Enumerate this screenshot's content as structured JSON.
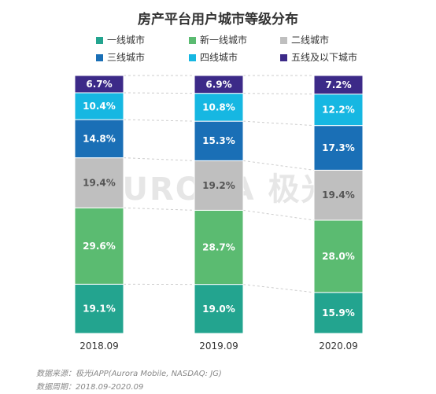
{
  "chart_data": {
    "type": "bar",
    "stacked": true,
    "title": "房产平台用户城市等级分布",
    "categories": [
      "2018.09",
      "2019.09",
      "2020.09"
    ],
    "series": [
      {
        "name": "一线城市",
        "color": "#23a48f",
        "values": [
          19.1,
          19.0,
          15.9
        ],
        "labels": [
          "19.1%",
          "19.0%",
          "15.9%"
        ]
      },
      {
        "name": "新一线城市",
        "color": "#5bbb71",
        "values": [
          29.6,
          28.7,
          28.0
        ],
        "labels": [
          "29.6%",
          "28.7%",
          "28.0%"
        ]
      },
      {
        "name": "二线城市",
        "color": "#bfbfbf",
        "values": [
          19.4,
          19.2,
          19.4
        ],
        "labels": [
          "19.4%",
          "19.2%",
          "19.4%"
        ]
      },
      {
        "name": "三线城市",
        "color": "#1a6fb6",
        "values": [
          14.8,
          15.3,
          17.3
        ],
        "labels": [
          "14.8%",
          "15.3%",
          "17.3%"
        ]
      },
      {
        "name": "四线城市",
        "color": "#16b7e2",
        "values": [
          10.4,
          10.8,
          12.2
        ],
        "labels": [
          "10.4%",
          "10.8%",
          "12.2%"
        ]
      },
      {
        "name": "五线及以下城市",
        "color": "#3c2a88",
        "values": [
          6.7,
          6.9,
          7.2
        ],
        "labels": [
          "6.7%",
          "6.9%",
          "7.2%"
        ]
      }
    ],
    "ylim": [
      0,
      100
    ],
    "grid": false,
    "legend_position": "top",
    "connector_lines": true
  },
  "watermark": "URORA 极光",
  "footer": {
    "source": "数据来源：极光iAPP(Aurora Mobile, NASDAQ: JG)",
    "period": "数据周期：2018.09-2020.09"
  }
}
